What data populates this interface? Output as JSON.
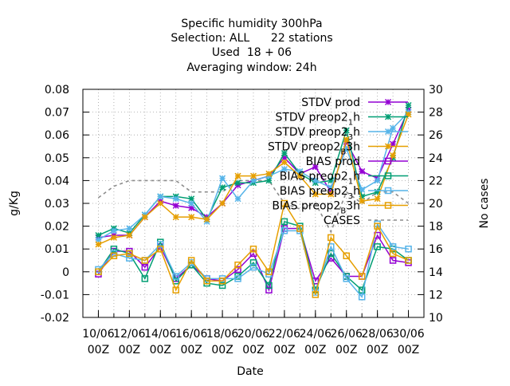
{
  "chart_data": {
    "type": "line",
    "title_lines": [
      "Specific humidity 300hPa",
      "Selection: ALL      22 stations",
      "Used  18 + 06",
      "Averaging window: 24h"
    ],
    "xlabel": "Date",
    "ylabel": "g/Kg",
    "y2label": "No cases",
    "x": [
      "10/06 00Z",
      "11/06 00Z",
      "12/06 00Z",
      "13/06 00Z",
      "14/06 00Z",
      "15/06 00Z",
      "16/06 00Z",
      "17/06 00Z",
      "18/06 00Z",
      "19/06 00Z",
      "20/06 00Z",
      "21/06 00Z",
      "22/06 00Z",
      "23/06 00Z",
      "24/06 00Z",
      "25/06 00Z",
      "26/06 00Z",
      "27/06 00Z",
      "28/06 00Z",
      "29/06 00Z",
      "30/06 00Z"
    ],
    "xtick_labels": [
      {
        "date": "10/06",
        "time": "00Z"
      },
      {
        "date": "12/06",
        "time": "00Z"
      },
      {
        "date": "14/06",
        "time": "00Z"
      },
      {
        "date": "16/06",
        "time": "00Z"
      },
      {
        "date": "18/06",
        "time": "00Z"
      },
      {
        "date": "20/06",
        "time": "00Z"
      },
      {
        "date": "22/06",
        "time": "00Z"
      },
      {
        "date": "24/06",
        "time": "00Z"
      },
      {
        "date": "26/06",
        "time": "00Z"
      },
      {
        "date": "28/06",
        "time": "00Z"
      },
      {
        "date": "30/06",
        "time": "00Z"
      }
    ],
    "xtick_days": [
      0,
      2,
      4,
      6,
      8,
      10,
      12,
      14,
      16,
      18,
      20
    ],
    "xlim_days": [
      -1,
      21
    ],
    "ylim": [
      -0.02,
      0.08
    ],
    "yticks": [
      -0.02,
      -0.01,
      0,
      0.01,
      0.02,
      0.03,
      0.04,
      0.05,
      0.06,
      0.07,
      0.08
    ],
    "ytick_labels": [
      "-0.02",
      "-0.01",
      "0",
      "0.01",
      "0.02",
      "0.03",
      "0.04",
      "0.05",
      "0.06",
      "0.07",
      "0.08"
    ],
    "y2lim": [
      10,
      30
    ],
    "y2ticks": [
      10,
      12,
      14,
      16,
      18,
      20,
      22,
      24,
      26,
      28,
      30
    ],
    "grid": true,
    "legend_position": "top-right",
    "series": [
      {
        "name": "STDV prod",
        "label_parts": [
          "STDV prod"
        ],
        "color": "#9400d3",
        "marker": "x",
        "dash": false,
        "axis": "y",
        "x": [
          0,
          1,
          2,
          3,
          4,
          5,
          6,
          7,
          8,
          9,
          10,
          11,
          12,
          13,
          14,
          15,
          16,
          17,
          18,
          19,
          20
        ],
        "values": [
          0.015,
          0.016,
          0.016,
          0.024,
          0.031,
          0.029,
          0.028,
          0.024,
          0.03,
          0.038,
          0.04,
          0.042,
          0.05,
          0.043,
          0.046,
          0.035,
          0.057,
          0.044,
          0.041,
          0.056,
          0.071
        ]
      },
      {
        "name": "STDV preop2_1h",
        "label_parts": [
          "STDV preop2",
          "1",
          "h"
        ],
        "color": "#009e73",
        "marker": "x",
        "dash": false,
        "axis": "y",
        "x": [
          0,
          1,
          2,
          3,
          4,
          5,
          6,
          7,
          8,
          9,
          10,
          11,
          12,
          13,
          14,
          15,
          16,
          17,
          18,
          19,
          20
        ],
        "values": [
          0.016,
          0.019,
          0.017,
          0.025,
          0.033,
          0.033,
          0.032,
          0.023,
          0.037,
          0.039,
          0.039,
          0.04,
          0.052,
          0.043,
          0.039,
          0.04,
          0.062,
          0.033,
          0.035,
          0.05,
          0.073
        ]
      },
      {
        "name": "STDV preop2_3h",
        "label_parts": [
          "STDV preop2",
          "3",
          "h"
        ],
        "color": "#56b4e9",
        "marker": "x",
        "dash": false,
        "axis": "y",
        "x": [
          0,
          1,
          2,
          3,
          4,
          5,
          6,
          7,
          8,
          9,
          10,
          11,
          12,
          13,
          14,
          15,
          16,
          17,
          18,
          19,
          20
        ],
        "values": [
          0.014,
          0.018,
          0.019,
          0.025,
          0.033,
          0.032,
          0.03,
          0.022,
          0.041,
          0.032,
          0.04,
          0.042,
          0.045,
          0.044,
          0.04,
          0.037,
          0.054,
          0.036,
          0.04,
          0.063,
          0.07
        ]
      },
      {
        "name": "STDV preop2_B3h",
        "label_parts": [
          "STDV preop2",
          "B",
          "3h"
        ],
        "color": "#e69f00",
        "marker": "x",
        "dash": false,
        "axis": "y",
        "x": [
          0,
          1,
          2,
          3,
          4,
          5,
          6,
          7,
          8,
          9,
          10,
          11,
          12,
          13,
          14,
          15,
          16,
          17,
          18,
          19,
          20
        ],
        "values": [
          0.012,
          0.015,
          0.016,
          0.024,
          0.03,
          0.024,
          0.024,
          0.023,
          0.03,
          0.042,
          0.042,
          0.043,
          0.048,
          0.042,
          0.034,
          0.034,
          0.058,
          0.031,
          0.032,
          0.051,
          0.069
        ]
      },
      {
        "name": "BIAS prod",
        "label_parts": [
          "BIAS prod"
        ],
        "color": "#9400d3",
        "marker": "square",
        "dash": false,
        "axis": "y",
        "x": [
          0,
          1,
          2,
          3,
          4,
          5,
          6,
          7,
          8,
          9,
          10,
          11,
          12,
          13,
          14,
          15,
          16,
          17,
          18,
          19,
          20
        ],
        "values": [
          -0.001,
          0.009,
          0.009,
          0.002,
          0.011,
          -0.003,
          0.003,
          -0.003,
          -0.004,
          0.001,
          0.008,
          -0.008,
          0.019,
          0.019,
          -0.004,
          0.006,
          -0.002,
          -0.002,
          0.016,
          0.005,
          0.004
        ]
      },
      {
        "name": "BIAS preop2_1h",
        "label_parts": [
          "BIAS preop2",
          "1",
          "h"
        ],
        "color": "#009e73",
        "marker": "square",
        "dash": false,
        "axis": "y",
        "x": [
          0,
          1,
          2,
          3,
          4,
          5,
          6,
          7,
          8,
          9,
          10,
          11,
          12,
          13,
          14,
          15,
          16,
          17,
          18,
          19,
          20
        ],
        "values": [
          0.0,
          0.01,
          0.008,
          -0.003,
          0.013,
          -0.004,
          0.003,
          -0.005,
          -0.006,
          -0.002,
          0.004,
          -0.006,
          0.022,
          0.02,
          -0.008,
          0.008,
          -0.002,
          -0.008,
          0.011,
          0.01,
          0.005
        ]
      },
      {
        "name": "BIAS preop2_3h",
        "label_parts": [
          "BIAS preop2",
          "3",
          "h"
        ],
        "color": "#56b4e9",
        "marker": "square",
        "dash": false,
        "axis": "y",
        "x": [
          0,
          1,
          2,
          3,
          4,
          5,
          6,
          7,
          8,
          9,
          10,
          11,
          12,
          13,
          14,
          15,
          16,
          17,
          18,
          19,
          20
        ],
        "values": [
          0.001,
          0.008,
          0.006,
          0.005,
          0.012,
          -0.002,
          0.004,
          -0.003,
          -0.003,
          -0.003,
          0.002,
          -0.001,
          0.018,
          0.018,
          -0.009,
          0.011,
          -0.003,
          -0.011,
          0.021,
          0.011,
          0.01
        ]
      },
      {
        "name": "BIAS preop2_B3h",
        "label_parts": [
          "BIAS preop2",
          "B",
          "3h"
        ],
        "color": "#e69f00",
        "marker": "square",
        "dash": false,
        "axis": "y",
        "x": [
          0,
          1,
          2,
          3,
          4,
          5,
          6,
          7,
          8,
          9,
          10,
          11,
          12,
          13,
          14,
          15,
          16,
          17,
          18,
          19,
          20
        ],
        "values": [
          0.0,
          0.007,
          0.008,
          0.005,
          0.01,
          -0.008,
          0.005,
          -0.004,
          -0.004,
          0.003,
          0.01,
          0.0,
          0.03,
          0.019,
          -0.01,
          0.015,
          0.007,
          -0.002,
          0.02,
          0.008,
          0.005
        ]
      },
      {
        "name": "CASES",
        "label_parts": [
          "CASES"
        ],
        "color": "#8c8c8c",
        "marker": "none",
        "dash": true,
        "axis": "y2",
        "x": [
          0,
          1,
          2,
          3,
          4,
          5,
          6,
          7,
          8,
          9,
          10,
          11,
          12,
          13,
          14,
          15,
          16,
          17,
          18,
          19,
          20
        ],
        "values": [
          20.5,
          21.5,
          22,
          22,
          22,
          22,
          21,
          21,
          21,
          22,
          22,
          22,
          20,
          19.5,
          20,
          17.5,
          21,
          20,
          21,
          21,
          20
        ]
      }
    ]
  }
}
